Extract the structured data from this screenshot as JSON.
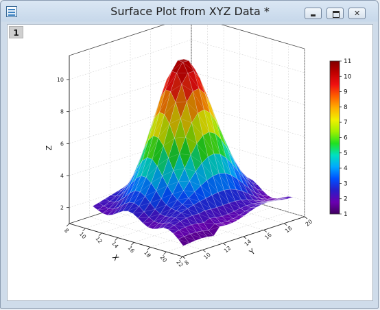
{
  "window": {
    "title": "Surface Plot from XYZ Data *",
    "controls": {
      "minimize": "minimize",
      "maximize": "maximize",
      "close": "✕"
    }
  },
  "layer_tab": "1",
  "chart_data": {
    "type": "surface-3d",
    "title": "",
    "axes": {
      "x": {
        "label": "X",
        "ticks": [
          "8",
          "10",
          "12",
          "14",
          "16",
          "18",
          "20",
          "22"
        ],
        "range": [
          8,
          22
        ]
      },
      "y": {
        "label": "Y",
        "ticks": [
          "8",
          "10",
          "12",
          "14",
          "16",
          "18",
          "20"
        ],
        "range": [
          8,
          20
        ]
      },
      "z": {
        "label": "Z",
        "ticks": [
          "2",
          "4",
          "6",
          "8",
          "10"
        ],
        "range": [
          1,
          11.5
        ]
      }
    },
    "colorbar": {
      "labels": [
        "11",
        "10",
        "9",
        "8",
        "7",
        "6",
        "5",
        "4",
        "3",
        "2",
        "1"
      ],
      "range": [
        1,
        11
      ],
      "colormap": [
        "#400060",
        "#6a00b0",
        "#2a1cc8",
        "#0050ff",
        "#00a8ff",
        "#00e0c0",
        "#20e020",
        "#a0f000",
        "#f0f000",
        "#ffb000",
        "#ff6000",
        "#f01010",
        "#c00000",
        "#800000"
      ]
    },
    "surface": {
      "peak_value": 11,
      "base_value": 2,
      "shape": "single gaussian peak",
      "mesh": "wireframe overlay, lighting on",
      "grid": true
    }
  }
}
